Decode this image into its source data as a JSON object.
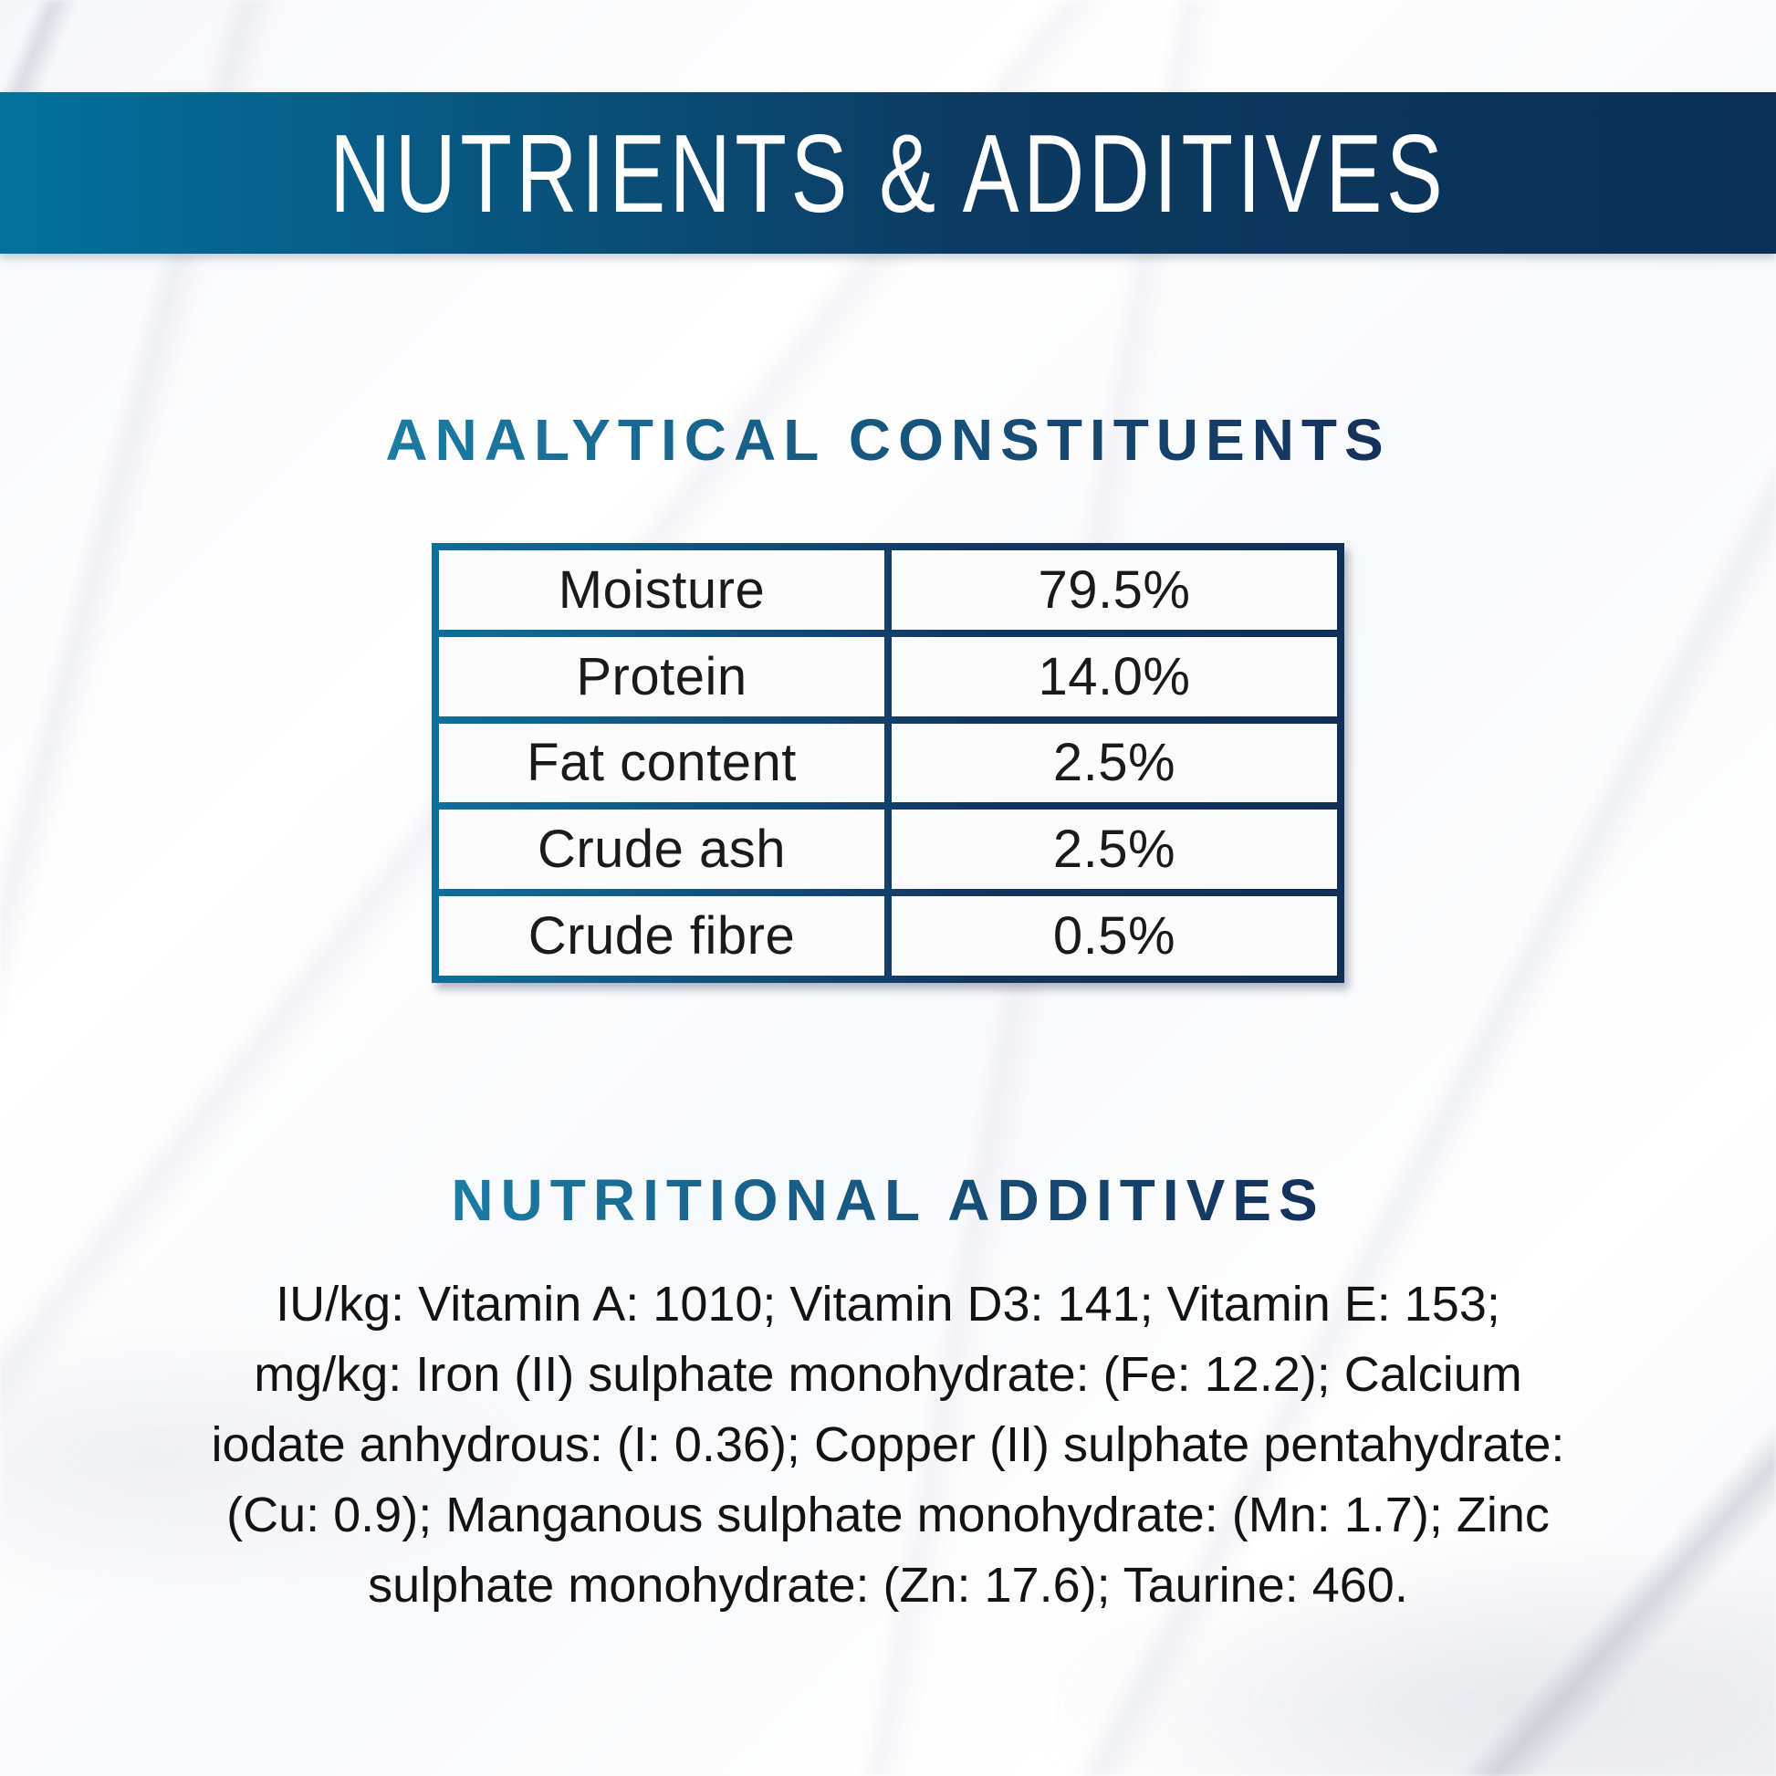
{
  "banner": {
    "title": "NUTRIENTS & ADDITIVES",
    "bg_gradient_start": "#04719D",
    "bg_gradient_end": "#0A3056",
    "text_color": "#FFFFFF"
  },
  "analytical": {
    "heading": "ANALYTICAL CONSTITUENTS",
    "table": {
      "rows": [
        {
          "label": "Moisture",
          "value": "79.5%"
        },
        {
          "label": "Protein",
          "value": "14.0%"
        },
        {
          "label": "Fat content",
          "value": "2.5%"
        },
        {
          "label": "Crude ash",
          "value": "2.5%"
        },
        {
          "label": "Crude fibre",
          "value": "0.5%"
        }
      ]
    }
  },
  "additives": {
    "heading": "NUTRITIONAL ADDITIVES",
    "lines": [
      "IU/kg: Vitamin A: 1010; Vitamin D3: 141; Vitamin E: 153;",
      "mg/kg: Iron (II) sulphate monohydrate: (Fe: 12.2); Calcium",
      "iodate anhydrous: (I: 0.36); Copper (II) sulphate pentahydrate:",
      "(Cu: 0.9); Manganous sulphate monohydrate: (Mn: 1.7); Zinc",
      "sulphate monohydrate: (Zn: 17.6); Taurine: 460."
    ]
  },
  "colors": {
    "heading_gradient_start": "#1B7CA4",
    "heading_gradient_end": "#13305A",
    "table_border_gradient_start": "#0F6F9C",
    "table_border_gradient_end": "#102F58",
    "cell_text": "#1A1A1A",
    "paragraph_text": "#131313"
  }
}
